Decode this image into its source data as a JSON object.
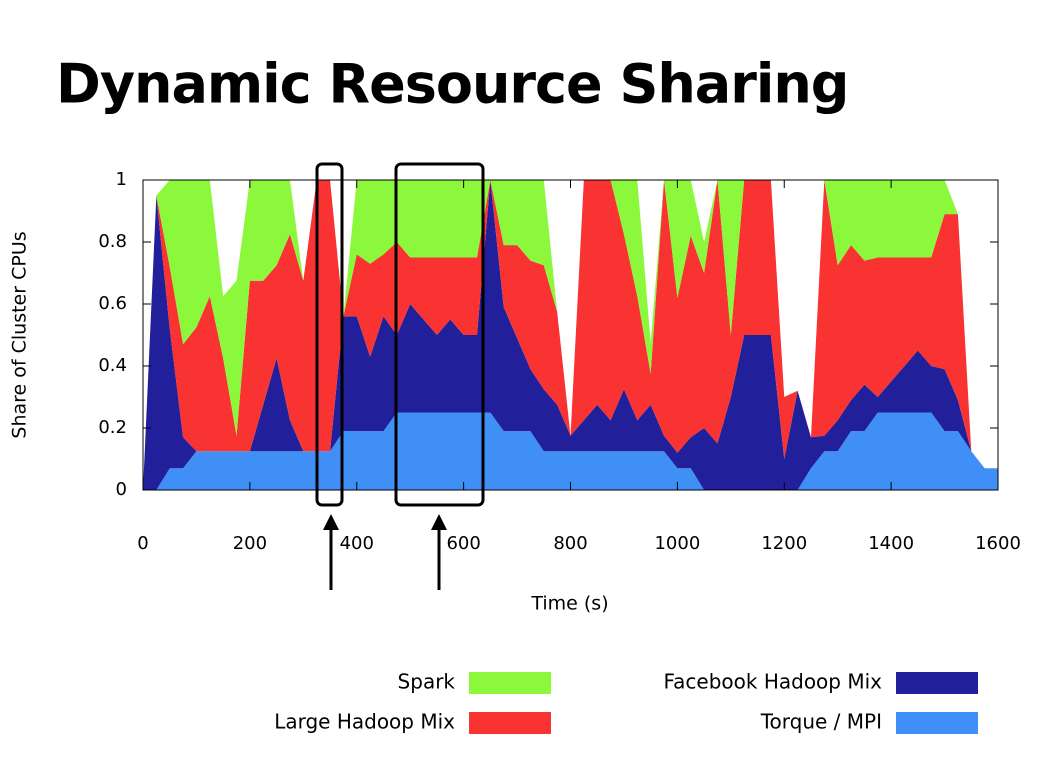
{
  "chart_data": {
    "type": "stacked_area",
    "title": "Dynamic Resource Sharing",
    "x_label": "Time (s)",
    "y_label": "Share of Cluster CPUs",
    "xlim": [
      0,
      1600
    ],
    "ylim": [
      0,
      1
    ],
    "xticks": [
      0,
      200,
      400,
      600,
      800,
      1000,
      1200,
      1400,
      1600
    ],
    "yticks": [
      0,
      0.2,
      0.4,
      0.6,
      0.8,
      1
    ],
    "x": [
      0,
      25,
      50,
      75,
      100,
      125,
      150,
      175,
      200,
      225,
      250,
      275,
      300,
      325,
      350,
      375,
      400,
      425,
      450,
      475,
      500,
      525,
      550,
      575,
      600,
      625,
      650,
      675,
      700,
      725,
      750,
      775,
      800,
      825,
      850,
      875,
      900,
      925,
      950,
      975,
      1000,
      1025,
      1050,
      1075,
      1100,
      1125,
      1150,
      1175,
      1200,
      1225,
      1250,
      1275,
      1300,
      1325,
      1350,
      1375,
      1400,
      1425,
      1450,
      1475,
      1500,
      1525,
      1550,
      1575,
      1600
    ],
    "series": [
      {
        "name": "Torque / MPI",
        "color": "#3f8ff7",
        "values": [
          0,
          0,
          0.07,
          0.07,
          0.125,
          0.125,
          0.125,
          0.125,
          0.125,
          0.125,
          0.125,
          0.125,
          0.125,
          0.125,
          0.125,
          0.19,
          0.19,
          0.19,
          0.19,
          0.25,
          0.25,
          0.25,
          0.25,
          0.25,
          0.25,
          0.25,
          0.25,
          0.19,
          0.19,
          0.19,
          0.125,
          0.125,
          0.125,
          0.125,
          0.125,
          0.125,
          0.125,
          0.125,
          0.125,
          0.125,
          0.07,
          0.07,
          0,
          0,
          0,
          0,
          0,
          0,
          0,
          0,
          0.07,
          0.125,
          0.125,
          0.19,
          0.19,
          0.25,
          0.25,
          0.25,
          0.25,
          0.25,
          0.19,
          0.19,
          0.125,
          0.07,
          0.07
        ]
      },
      {
        "name": "Facebook Hadoop Mix",
        "color": "#21209a",
        "values": [
          0,
          0.95,
          0.45,
          0.1,
          0,
          0,
          0,
          0,
          0,
          0.15,
          0.3,
          0.1,
          0,
          0,
          0,
          0.37,
          0.37,
          0.24,
          0.37,
          0.25,
          0.35,
          0.3,
          0.25,
          0.3,
          0.25,
          0.25,
          0.75,
          0.4,
          0.3,
          0.2,
          0.2,
          0.15,
          0.05,
          0.1,
          0.15,
          0.1,
          0.2,
          0.1,
          0.15,
          0.05,
          0.05,
          0.1,
          0.2,
          0.15,
          0.3,
          0.5,
          0.5,
          0.5,
          0.1,
          0.32,
          0.1,
          0.05,
          0.1,
          0.1,
          0.15,
          0.05,
          0.1,
          0.15,
          0.2,
          0.15,
          0.2,
          0.1,
          0,
          0,
          0
        ]
      },
      {
        "name": "Large Hadoop Mix",
        "color": "#f93232",
        "values": [
          0,
          0,
          0.2,
          0.3,
          0.4,
          0.5,
          0.3,
          0.05,
          0.55,
          0.4,
          0.3,
          0.6,
          0.55,
          0.875,
          0.875,
          0,
          0.2,
          0.3,
          0.2,
          0.3,
          0.15,
          0.2,
          0.25,
          0.2,
          0.25,
          0.25,
          0,
          0.2,
          0.3,
          0.35,
          0.4,
          0.3,
          0,
          0.775,
          0.725,
          0.775,
          0.5,
          0.4,
          0.1,
          0.825,
          0.5,
          0.65,
          0.5,
          0.85,
          0.2,
          0.5,
          0.5,
          0.5,
          0.2,
          0,
          0,
          0.825,
          0.5,
          0.5,
          0.4,
          0.45,
          0.4,
          0.35,
          0.3,
          0.35,
          0.5,
          0.6,
          0,
          0,
          0
        ]
      },
      {
        "name": "Spark",
        "color": "#8cf83c",
        "values": [
          0,
          0,
          0.28,
          0.53,
          0.475,
          0.375,
          0.2,
          0.5,
          0.325,
          0.325,
          0.275,
          0.175,
          0,
          0,
          0,
          0,
          0.24,
          0.27,
          0.24,
          0.2,
          0.25,
          0.25,
          0.25,
          0.25,
          0.25,
          0.25,
          0,
          0.21,
          0.21,
          0.26,
          0.275,
          0,
          0,
          0,
          0,
          0,
          0.175,
          0.375,
          0.1,
          0,
          0.38,
          0.18,
          0.1,
          0,
          0.5,
          0,
          0,
          0,
          0,
          0,
          0,
          0,
          0.275,
          0.21,
          0.26,
          0.25,
          0.25,
          0.25,
          0.25,
          0.25,
          0.11,
          0,
          0,
          0,
          0
        ]
      }
    ]
  }
}
